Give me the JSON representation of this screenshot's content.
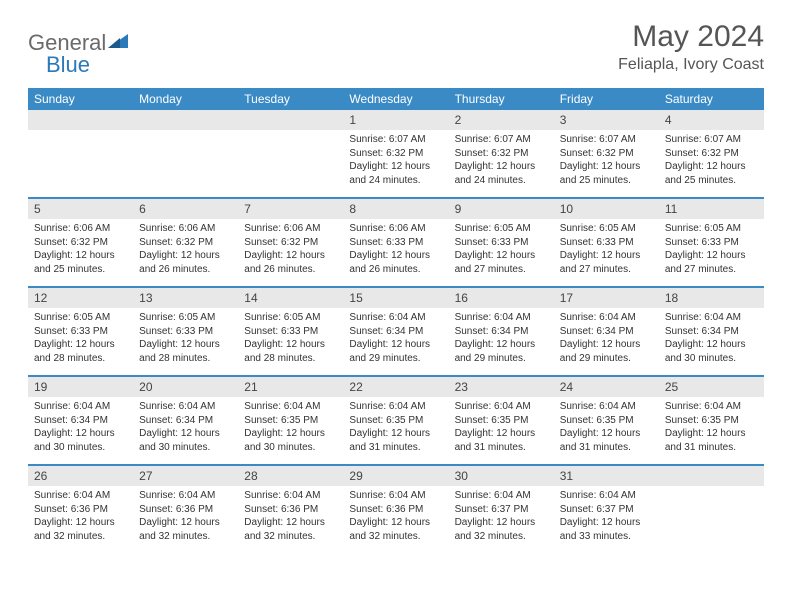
{
  "logo": {
    "word1": "General",
    "word2": "Blue"
  },
  "title": "May 2024",
  "location": "Feliapla, Ivory Coast",
  "colors": {
    "header_bg": "#3a8ac6",
    "header_text": "#ffffff",
    "daynum_bg": "#e8e8e8",
    "separator": "#3a8ac6",
    "logo_gray": "#6a6a6a",
    "logo_blue": "#2a7ab9"
  },
  "day_headers": [
    "Sunday",
    "Monday",
    "Tuesday",
    "Wednesday",
    "Thursday",
    "Friday",
    "Saturday"
  ],
  "weeks": [
    [
      null,
      null,
      null,
      {
        "n": "1",
        "sr": "6:07 AM",
        "ss": "6:32 PM",
        "dl": "12 hours and 24 minutes."
      },
      {
        "n": "2",
        "sr": "6:07 AM",
        "ss": "6:32 PM",
        "dl": "12 hours and 24 minutes."
      },
      {
        "n": "3",
        "sr": "6:07 AM",
        "ss": "6:32 PM",
        "dl": "12 hours and 25 minutes."
      },
      {
        "n": "4",
        "sr": "6:07 AM",
        "ss": "6:32 PM",
        "dl": "12 hours and 25 minutes."
      }
    ],
    [
      {
        "n": "5",
        "sr": "6:06 AM",
        "ss": "6:32 PM",
        "dl": "12 hours and 25 minutes."
      },
      {
        "n": "6",
        "sr": "6:06 AM",
        "ss": "6:32 PM",
        "dl": "12 hours and 26 minutes."
      },
      {
        "n": "7",
        "sr": "6:06 AM",
        "ss": "6:32 PM",
        "dl": "12 hours and 26 minutes."
      },
      {
        "n": "8",
        "sr": "6:06 AM",
        "ss": "6:33 PM",
        "dl": "12 hours and 26 minutes."
      },
      {
        "n": "9",
        "sr": "6:05 AM",
        "ss": "6:33 PM",
        "dl": "12 hours and 27 minutes."
      },
      {
        "n": "10",
        "sr": "6:05 AM",
        "ss": "6:33 PM",
        "dl": "12 hours and 27 minutes."
      },
      {
        "n": "11",
        "sr": "6:05 AM",
        "ss": "6:33 PM",
        "dl": "12 hours and 27 minutes."
      }
    ],
    [
      {
        "n": "12",
        "sr": "6:05 AM",
        "ss": "6:33 PM",
        "dl": "12 hours and 28 minutes."
      },
      {
        "n": "13",
        "sr": "6:05 AM",
        "ss": "6:33 PM",
        "dl": "12 hours and 28 minutes."
      },
      {
        "n": "14",
        "sr": "6:05 AM",
        "ss": "6:33 PM",
        "dl": "12 hours and 28 minutes."
      },
      {
        "n": "15",
        "sr": "6:04 AM",
        "ss": "6:34 PM",
        "dl": "12 hours and 29 minutes."
      },
      {
        "n": "16",
        "sr": "6:04 AM",
        "ss": "6:34 PM",
        "dl": "12 hours and 29 minutes."
      },
      {
        "n": "17",
        "sr": "6:04 AM",
        "ss": "6:34 PM",
        "dl": "12 hours and 29 minutes."
      },
      {
        "n": "18",
        "sr": "6:04 AM",
        "ss": "6:34 PM",
        "dl": "12 hours and 30 minutes."
      }
    ],
    [
      {
        "n": "19",
        "sr": "6:04 AM",
        "ss": "6:34 PM",
        "dl": "12 hours and 30 minutes."
      },
      {
        "n": "20",
        "sr": "6:04 AM",
        "ss": "6:34 PM",
        "dl": "12 hours and 30 minutes."
      },
      {
        "n": "21",
        "sr": "6:04 AM",
        "ss": "6:35 PM",
        "dl": "12 hours and 30 minutes."
      },
      {
        "n": "22",
        "sr": "6:04 AM",
        "ss": "6:35 PM",
        "dl": "12 hours and 31 minutes."
      },
      {
        "n": "23",
        "sr": "6:04 AM",
        "ss": "6:35 PM",
        "dl": "12 hours and 31 minutes."
      },
      {
        "n": "24",
        "sr": "6:04 AM",
        "ss": "6:35 PM",
        "dl": "12 hours and 31 minutes."
      },
      {
        "n": "25",
        "sr": "6:04 AM",
        "ss": "6:35 PM",
        "dl": "12 hours and 31 minutes."
      }
    ],
    [
      {
        "n": "26",
        "sr": "6:04 AM",
        "ss": "6:36 PM",
        "dl": "12 hours and 32 minutes."
      },
      {
        "n": "27",
        "sr": "6:04 AM",
        "ss": "6:36 PM",
        "dl": "12 hours and 32 minutes."
      },
      {
        "n": "28",
        "sr": "6:04 AM",
        "ss": "6:36 PM",
        "dl": "12 hours and 32 minutes."
      },
      {
        "n": "29",
        "sr": "6:04 AM",
        "ss": "6:36 PM",
        "dl": "12 hours and 32 minutes."
      },
      {
        "n": "30",
        "sr": "6:04 AM",
        "ss": "6:37 PM",
        "dl": "12 hours and 32 minutes."
      },
      {
        "n": "31",
        "sr": "6:04 AM",
        "ss": "6:37 PM",
        "dl": "12 hours and 33 minutes."
      },
      null
    ]
  ],
  "labels": {
    "sunrise": "Sunrise:",
    "sunset": "Sunset:",
    "daylight": "Daylight:"
  }
}
